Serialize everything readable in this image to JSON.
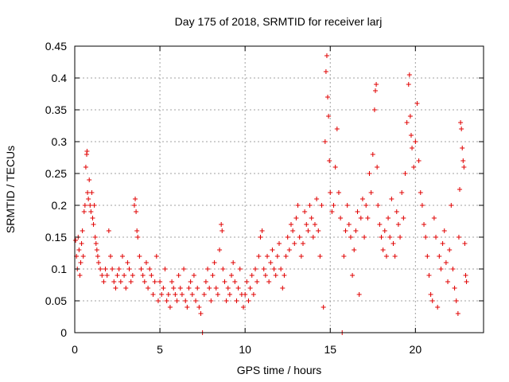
{
  "chart_data": {
    "type": "scatter",
    "title": "Day 175 of 2018, SRMTID for receiver larj",
    "xlabel": "GPS time / hours",
    "ylabel": "SRMTID / TECUs",
    "xlim": [
      0,
      24
    ],
    "ylim": [
      0,
      0.45
    ],
    "xticks": [
      0,
      5,
      10,
      15,
      20
    ],
    "xtick_labels": [
      "0",
      "5",
      "10",
      "15",
      "20"
    ],
    "yticks": [
      0,
      0.05,
      0.1,
      0.15,
      0.2,
      0.25,
      0.3,
      0.35,
      0.4,
      0.45
    ],
    "ytick_labels": [
      "0",
      "0.05",
      "0.1",
      "0.15",
      "0.2",
      "0.25",
      "0.3",
      "0.35",
      "0.4",
      "0.45"
    ],
    "grid": true,
    "marker": "+",
    "color": "#e00000",
    "series": [
      {
        "name": "SRMTID",
        "points": [
          [
            0.05,
            0.145
          ],
          [
            0.1,
            0.12
          ],
          [
            0.15,
            0.1
          ],
          [
            0.2,
            0.15
          ],
          [
            0.25,
            0.13
          ],
          [
            0.3,
            0.09
          ],
          [
            0.35,
            0.11
          ],
          [
            0.4,
            0.14
          ],
          [
            0.45,
            0.16
          ],
          [
            0.5,
            0.12
          ],
          [
            0.55,
            0.19
          ],
          [
            0.6,
            0.2
          ],
          [
            0.65,
            0.26
          ],
          [
            0.7,
            0.28
          ],
          [
            0.72,
            0.285
          ],
          [
            0.75,
            0.22
          ],
          [
            0.8,
            0.21
          ],
          [
            0.85,
            0.24
          ],
          [
            0.9,
            0.2
          ],
          [
            0.95,
            0.19
          ],
          [
            1.0,
            0.22
          ],
          [
            1.05,
            0.18
          ],
          [
            1.1,
            0.17
          ],
          [
            1.15,
            0.2
          ],
          [
            1.2,
            0.15
          ],
          [
            1.25,
            0.14
          ],
          [
            1.3,
            0.13
          ],
          [
            1.35,
            0.12
          ],
          [
            1.4,
            0.11
          ],
          [
            1.5,
            0.1
          ],
          [
            1.6,
            0.09
          ],
          [
            1.7,
            0.08
          ],
          [
            1.8,
            0.1
          ],
          [
            1.9,
            0.09
          ],
          [
            2.0,
            0.16
          ],
          [
            2.1,
            0.12
          ],
          [
            2.2,
            0.1
          ],
          [
            2.3,
            0.08
          ],
          [
            2.4,
            0.07
          ],
          [
            2.5,
            0.09
          ],
          [
            2.6,
            0.1
          ],
          [
            2.7,
            0.08
          ],
          [
            2.8,
            0.12
          ],
          [
            2.9,
            0.09
          ],
          [
            3.0,
            0.07
          ],
          [
            3.1,
            0.11
          ],
          [
            3.2,
            0.1
          ],
          [
            3.3,
            0.08
          ],
          [
            3.4,
            0.09
          ],
          [
            3.5,
            0.2
          ],
          [
            3.55,
            0.21
          ],
          [
            3.6,
            0.19
          ],
          [
            3.65,
            0.16
          ],
          [
            3.7,
            0.15
          ],
          [
            3.8,
            0.12
          ],
          [
            3.9,
            0.1
          ],
          [
            4.0,
            0.09
          ],
          [
            4.1,
            0.08
          ],
          [
            4.2,
            0.11
          ],
          [
            4.3,
            0.07
          ],
          [
            4.4,
            0.1
          ],
          [
            4.5,
            0.09
          ],
          [
            4.6,
            0.06
          ],
          [
            4.7,
            0.08
          ],
          [
            4.8,
            0.12
          ],
          [
            4.9,
            0.05
          ],
          [
            5.0,
            0.08
          ],
          [
            5.1,
            0.06
          ],
          [
            5.2,
            0.07
          ],
          [
            5.3,
            0.1
          ],
          [
            5.4,
            0.05
          ],
          [
            5.5,
            0.06
          ],
          [
            5.6,
            0.04
          ],
          [
            5.7,
            0.08
          ],
          [
            5.8,
            0.07
          ],
          [
            5.9,
            0.06
          ],
          [
            6.0,
            0.05
          ],
          [
            6.1,
            0.09
          ],
          [
            6.2,
            0.07
          ],
          [
            6.3,
            0.06
          ],
          [
            6.4,
            0.1
          ],
          [
            6.5,
            0.05
          ],
          [
            6.6,
            0.04
          ],
          [
            6.7,
            0.07
          ],
          [
            6.8,
            0.08
          ],
          [
            6.9,
            0.06
          ],
          [
            7.0,
            0.09
          ],
          [
            7.1,
            0.05
          ],
          [
            7.2,
            0.07
          ],
          [
            7.3,
            0.04
          ],
          [
            7.4,
            0.03
          ],
          [
            7.5,
            0.0
          ],
          [
            7.6,
            0.06
          ],
          [
            7.7,
            0.08
          ],
          [
            7.8,
            0.1
          ],
          [
            7.9,
            0.07
          ],
          [
            8.0,
            0.05
          ],
          [
            8.1,
            0.09
          ],
          [
            8.2,
            0.11
          ],
          [
            8.3,
            0.07
          ],
          [
            8.4,
            0.06
          ],
          [
            8.5,
            0.13
          ],
          [
            8.6,
            0.17
          ],
          [
            8.65,
            0.16
          ],
          [
            8.7,
            0.1
          ],
          [
            8.8,
            0.08
          ],
          [
            8.9,
            0.05
          ],
          [
            9.0,
            0.07
          ],
          [
            9.1,
            0.06
          ],
          [
            9.2,
            0.09
          ],
          [
            9.3,
            0.11
          ],
          [
            9.4,
            0.08
          ],
          [
            9.5,
            0.05
          ],
          [
            9.6,
            0.07
          ],
          [
            9.7,
            0.1
          ],
          [
            9.8,
            0.06
          ],
          [
            9.9,
            0.04
          ],
          [
            10.0,
            0.06
          ],
          [
            10.1,
            0.08
          ],
          [
            10.2,
            0.05
          ],
          [
            10.3,
            0.07
          ],
          [
            10.4,
            0.09
          ],
          [
            10.5,
            0.06
          ],
          [
            10.6,
            0.1
          ],
          [
            10.7,
            0.08
          ],
          [
            10.8,
            0.12
          ],
          [
            10.9,
            0.15
          ],
          [
            11.0,
            0.16
          ],
          [
            11.1,
            0.1
          ],
          [
            11.2,
            0.09
          ],
          [
            11.3,
            0.12
          ],
          [
            11.4,
            0.08
          ],
          [
            11.5,
            0.11
          ],
          [
            11.6,
            0.13
          ],
          [
            11.7,
            0.1
          ],
          [
            11.8,
            0.09
          ],
          [
            11.9,
            0.12
          ],
          [
            12.0,
            0.14
          ],
          [
            12.1,
            0.1
          ],
          [
            12.2,
            0.07
          ],
          [
            12.3,
            0.09
          ],
          [
            12.4,
            0.12
          ],
          [
            12.5,
            0.15
          ],
          [
            12.6,
            0.13
          ],
          [
            12.7,
            0.17
          ],
          [
            12.8,
            0.16
          ],
          [
            12.9,
            0.14
          ],
          [
            13.0,
            0.18
          ],
          [
            13.1,
            0.2
          ],
          [
            13.2,
            0.15
          ],
          [
            13.3,
            0.12
          ],
          [
            13.4,
            0.14
          ],
          [
            13.5,
            0.19
          ],
          [
            13.6,
            0.17
          ],
          [
            13.7,
            0.16
          ],
          [
            13.8,
            0.2
          ],
          [
            13.9,
            0.18
          ],
          [
            14.0,
            0.15
          ],
          [
            14.1,
            0.17
          ],
          [
            14.2,
            0.21
          ],
          [
            14.3,
            0.16
          ],
          [
            14.4,
            0.12
          ],
          [
            14.5,
            0.2
          ],
          [
            14.6,
            0.04
          ],
          [
            14.7,
            0.3
          ],
          [
            14.75,
            0.41
          ],
          [
            14.8,
            0.435
          ],
          [
            14.85,
            0.37
          ],
          [
            14.9,
            0.34
          ],
          [
            14.95,
            0.27
          ],
          [
            15.0,
            0.22
          ],
          [
            15.1,
            0.19
          ],
          [
            15.2,
            0.2
          ],
          [
            15.3,
            0.26
          ],
          [
            15.4,
            0.32
          ],
          [
            15.5,
            0.22
          ],
          [
            15.6,
            0.18
          ],
          [
            15.7,
            0.0
          ],
          [
            15.8,
            0.12
          ],
          [
            15.9,
            0.16
          ],
          [
            16.0,
            0.2
          ],
          [
            16.1,
            0.17
          ],
          [
            16.2,
            0.15
          ],
          [
            16.3,
            0.09
          ],
          [
            16.4,
            0.13
          ],
          [
            16.5,
            0.16
          ],
          [
            16.6,
            0.19
          ],
          [
            16.7,
            0.06
          ],
          [
            16.8,
            0.18
          ],
          [
            16.9,
            0.21
          ],
          [
            17.0,
            0.15
          ],
          [
            17.1,
            0.2
          ],
          [
            17.2,
            0.18
          ],
          [
            17.3,
            0.25
          ],
          [
            17.4,
            0.22
          ],
          [
            17.5,
            0.28
          ],
          [
            17.6,
            0.35
          ],
          [
            17.65,
            0.38
          ],
          [
            17.7,
            0.39
          ],
          [
            17.75,
            0.26
          ],
          [
            17.8,
            0.2
          ],
          [
            17.9,
            0.17
          ],
          [
            18.0,
            0.15
          ],
          [
            18.1,
            0.13
          ],
          [
            18.2,
            0.16
          ],
          [
            18.3,
            0.12
          ],
          [
            18.4,
            0.18
          ],
          [
            18.5,
            0.15
          ],
          [
            18.6,
            0.21
          ],
          [
            18.7,
            0.14
          ],
          [
            18.8,
            0.12
          ],
          [
            18.9,
            0.19
          ],
          [
            19.0,
            0.17
          ],
          [
            19.1,
            0.15
          ],
          [
            19.2,
            0.22
          ],
          [
            19.3,
            0.18
          ],
          [
            19.4,
            0.25
          ],
          [
            19.5,
            0.33
          ],
          [
            19.6,
            0.39
          ],
          [
            19.65,
            0.405
          ],
          [
            19.7,
            0.34
          ],
          [
            19.75,
            0.31
          ],
          [
            19.8,
            0.29
          ],
          [
            19.9,
            0.26
          ],
          [
            20.0,
            0.3
          ],
          [
            20.1,
            0.36
          ],
          [
            20.2,
            0.27
          ],
          [
            20.3,
            0.22
          ],
          [
            20.4,
            0.2
          ],
          [
            20.5,
            0.17
          ],
          [
            20.6,
            0.15
          ],
          [
            20.7,
            0.12
          ],
          [
            20.8,
            0.09
          ],
          [
            20.9,
            0.06
          ],
          [
            21.0,
            0.05
          ],
          [
            21.1,
            0.18
          ],
          [
            21.2,
            0.15
          ],
          [
            21.3,
            0.04
          ],
          [
            21.4,
            0.12
          ],
          [
            21.5,
            0.1
          ],
          [
            21.6,
            0.14
          ],
          [
            21.7,
            0.16
          ],
          [
            21.8,
            0.11
          ],
          [
            21.9,
            0.08
          ],
          [
            22.0,
            0.13
          ],
          [
            22.1,
            0.2
          ],
          [
            22.2,
            0.1
          ],
          [
            22.3,
            0.07
          ],
          [
            22.4,
            0.05
          ],
          [
            22.5,
            0.03
          ],
          [
            22.55,
            0.15
          ],
          [
            22.6,
            0.225
          ],
          [
            22.65,
            0.33
          ],
          [
            22.7,
            0.32
          ],
          [
            22.75,
            0.29
          ],
          [
            22.8,
            0.27
          ],
          [
            22.85,
            0.26
          ],
          [
            22.9,
            0.14
          ],
          [
            22.95,
            0.09
          ],
          [
            23.0,
            0.08
          ]
        ]
      }
    ]
  }
}
